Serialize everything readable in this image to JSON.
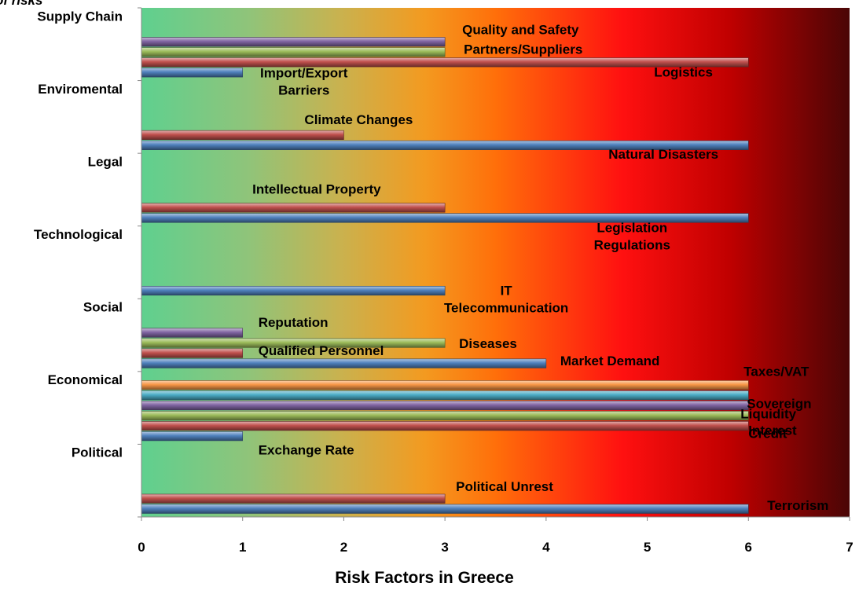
{
  "chart_data": {
    "type": "bar",
    "orientation": "horizontal",
    "title_fragment": "of risks",
    "xlabel": "Risk Factors in Greece",
    "xlim": [
      0,
      7
    ],
    "xticks": [
      "0",
      "1",
      "2",
      "3",
      "4",
      "5",
      "6",
      "7"
    ],
    "grid": false,
    "legend": "none",
    "background": "gradient green-yellow-orange-red-dark red",
    "series_colors": {
      "1": "#4f81bd",
      "2": "#c0504d",
      "3": "#9bbb59",
      "4": "#8064a2",
      "5": "#4bacc6",
      "6": "#f79646"
    },
    "categories": [
      {
        "name": "Supply Chain",
        "bars": [
          {
            "label": "Import/Export Barriers",
            "value": 1,
            "series": "1",
            "label_lines": [
              "Import/Export",
              "Barriers"
            ]
          },
          {
            "label": "Logistics",
            "value": 6,
            "series": "2"
          },
          {
            "label": "Partners/Suppliers",
            "value": 3,
            "series": "3"
          },
          {
            "label": "Quality and Safety",
            "value": 3,
            "series": "4"
          }
        ]
      },
      {
        "name": "Enviromental",
        "bars": [
          {
            "label": "Natural Disasters",
            "value": 6,
            "series": "1"
          },
          {
            "label": "Climate Changes",
            "value": 2,
            "series": "2"
          }
        ]
      },
      {
        "name": "Legal",
        "bars": [
          {
            "label": "Legislation Regulations",
            "value": 6,
            "series": "1",
            "label_lines": [
              "Legislation",
              "Regulations"
            ]
          },
          {
            "label": "Intellectual Property",
            "value": 3,
            "series": "2"
          }
        ]
      },
      {
        "name": "Technological",
        "bars": [
          {
            "label": "IT Telecommunication",
            "value": 3,
            "series": "1",
            "label_lines": [
              "IT",
              "Telecommunication"
            ]
          }
        ]
      },
      {
        "name": "Social",
        "bars": [
          {
            "label": "Market Demand",
            "value": 4,
            "series": "1"
          },
          {
            "label": "Qualified Personnel",
            "value": 1,
            "series": "2"
          },
          {
            "label": "Diseases",
            "value": 3,
            "series": "3"
          },
          {
            "label": "Reputation",
            "value": 1,
            "series": "4"
          }
        ]
      },
      {
        "name": "Economical",
        "bars": [
          {
            "label": "Exchange Rate",
            "value": 1,
            "series": "1"
          },
          {
            "label": "Credit",
            "value": 6,
            "series": "2"
          },
          {
            "label": "Interest",
            "value": 6,
            "series": "3"
          },
          {
            "label": "Liquidity",
            "value": 6,
            "series": "4"
          },
          {
            "label": "Sovereign",
            "value": 6,
            "series": "5"
          },
          {
            "label": "Taxes/VAT",
            "value": 6,
            "series": "6"
          }
        ]
      },
      {
        "name": "Political",
        "bars": [
          {
            "label": "Terrorism",
            "value": 6,
            "series": "1"
          },
          {
            "label": "Political Unrest",
            "value": 3,
            "series": "2"
          }
        ]
      }
    ]
  }
}
